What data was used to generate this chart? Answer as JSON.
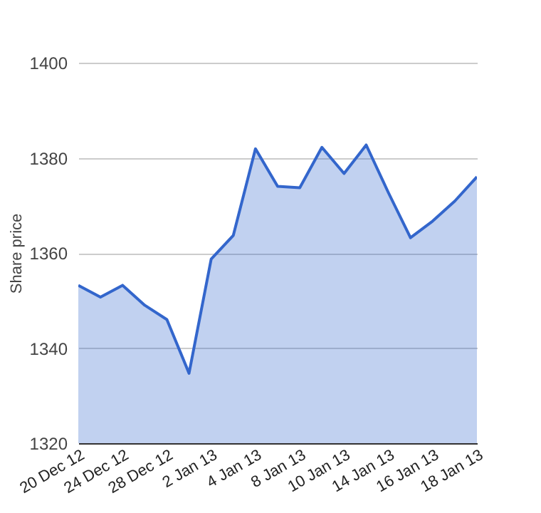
{
  "chart_data": {
    "type": "area",
    "ylabel": "Share price",
    "categories": [
      "20 Dec 12",
      null,
      "24 Dec 12",
      null,
      "28 Dec 12",
      null,
      "2 Jan 13",
      null,
      "4 Jan 13",
      null,
      "8 Jan 13",
      null,
      "10 Jan 13",
      null,
      "14 Jan 13",
      null,
      "16 Jan 13",
      null,
      "18 Jan 13"
    ],
    "series": [
      {
        "color": "#3366cc",
        "values": [
          1353.2,
          1350.7,
          1353.2,
          1349,
          1346,
          1334.7,
          1358.7,
          1363.7,
          1381.9,
          1374,
          1373.7,
          1382.2,
          1376.7,
          1382.7,
          1372.7,
          1363.2,
          1366.7,
          1370.9,
          1376
        ]
      }
    ],
    "ylim": [
      1320,
      1400
    ],
    "yticks": [
      1320,
      1340,
      1360,
      1380,
      1400
    ],
    "grid": "y",
    "marker": "none",
    "line_style": "solid"
  }
}
